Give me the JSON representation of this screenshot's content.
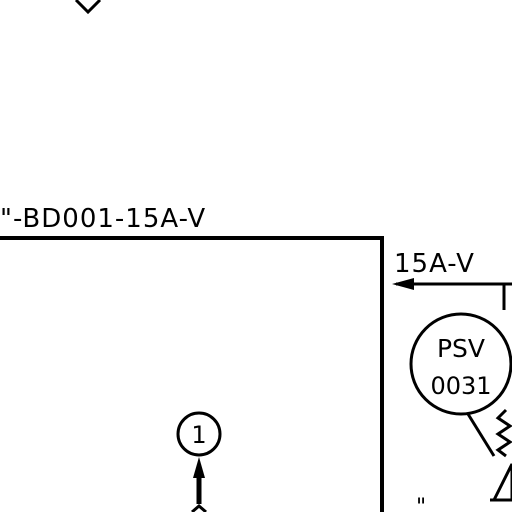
{
  "diagram": {
    "line_number_label": "\"-BD001-15A-V",
    "branch_line_label": "15A-V",
    "valve_tag_line1": "PSV",
    "valve_tag_line2": "0031",
    "note_number": "1",
    "partial_mark": "\""
  },
  "colors": {
    "stroke": "#000000",
    "background": "#ffffff"
  }
}
